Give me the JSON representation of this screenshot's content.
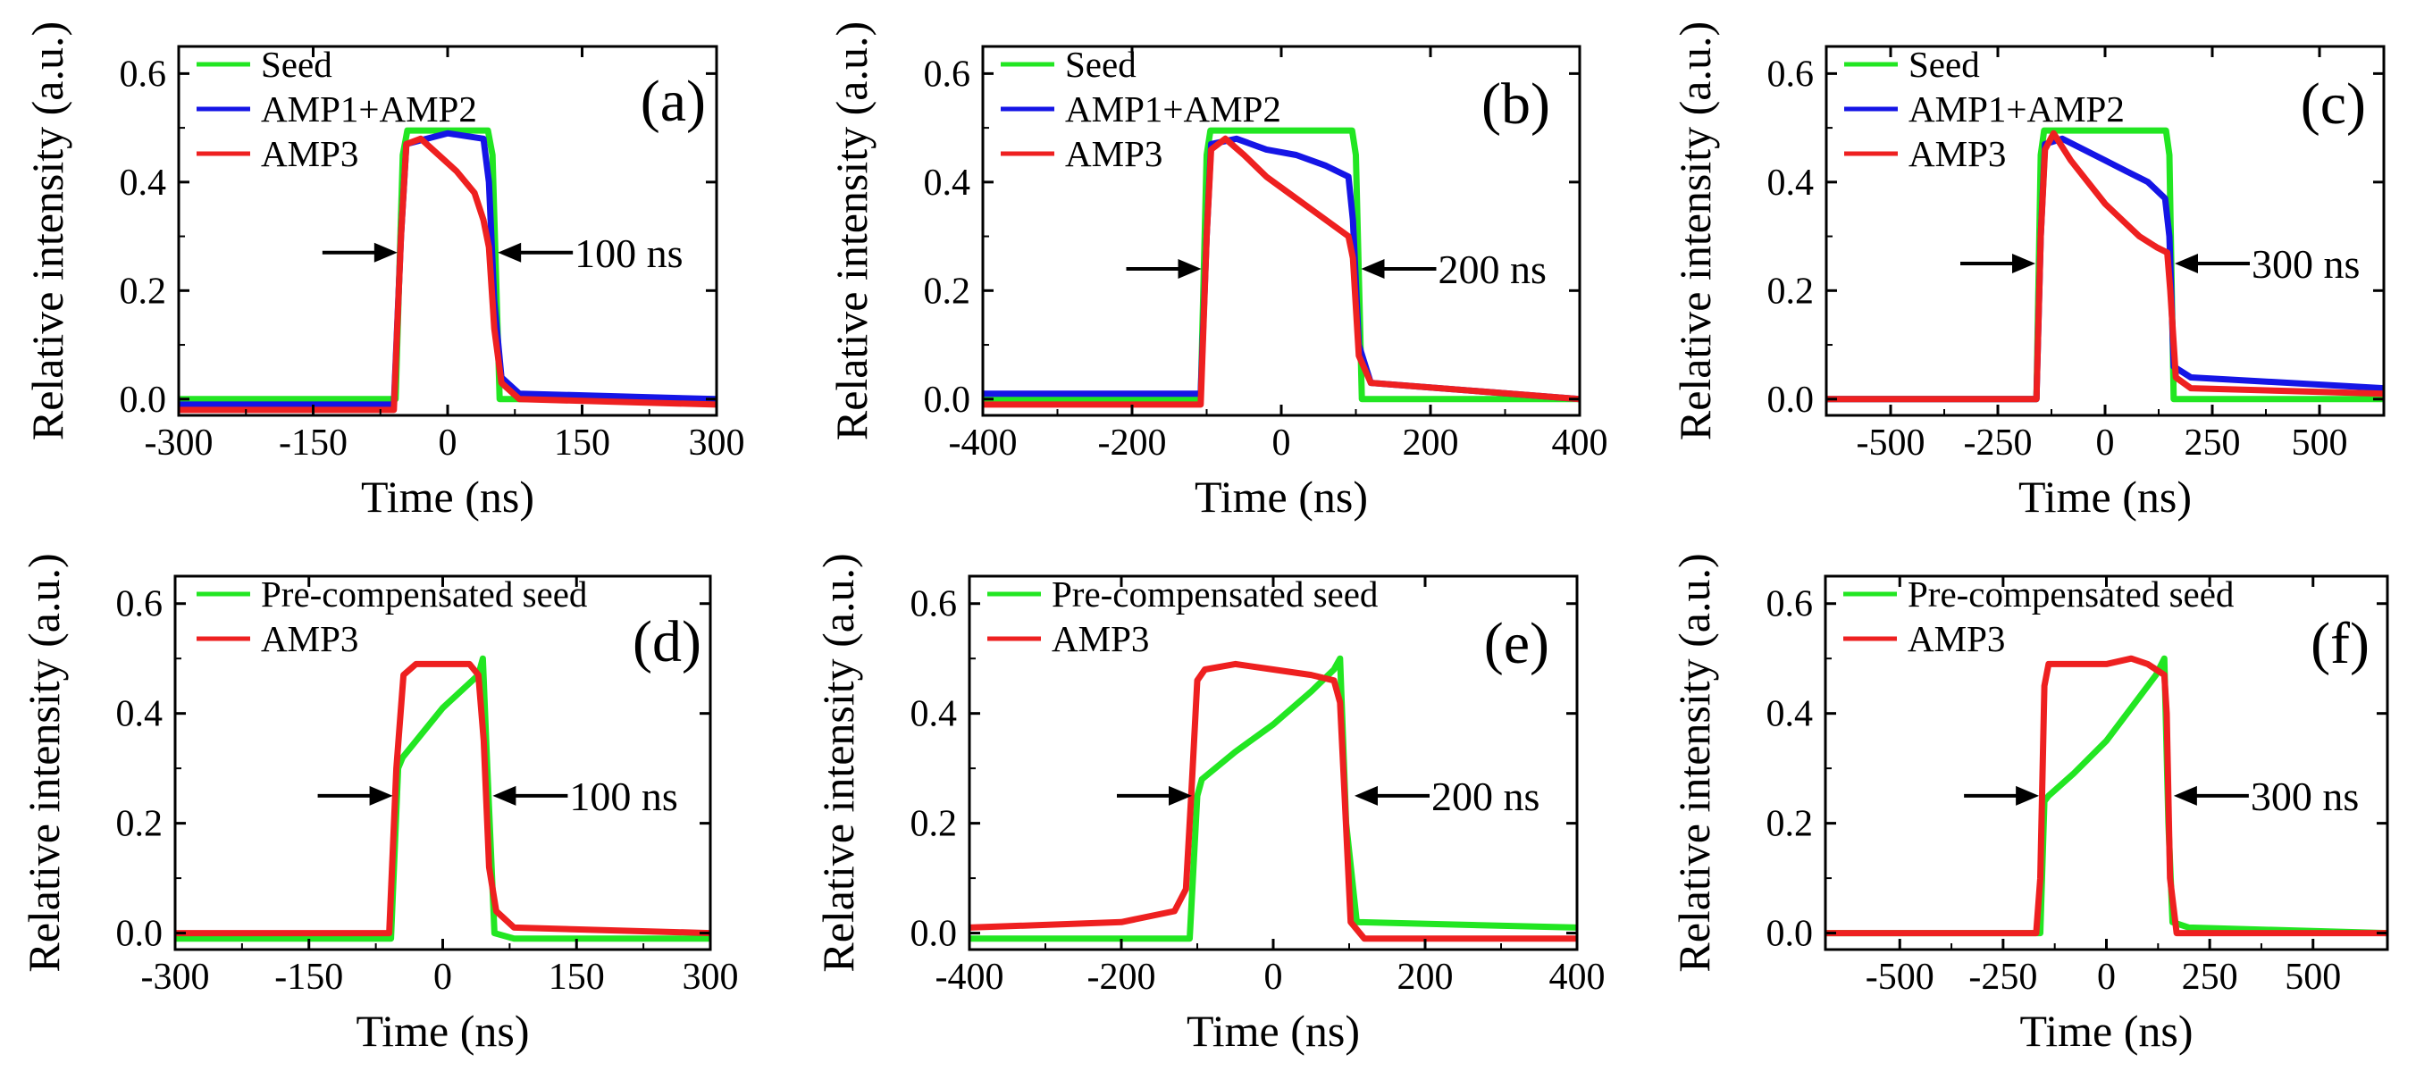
{
  "figure": {
    "title": ""
  },
  "chart_data": [
    {
      "type": "line",
      "panel": "(a)",
      "xlabel": "Time (ns)",
      "ylabel": "Relative intensity (a.u.)",
      "xlim": [
        -300,
        300
      ],
      "ylim": [
        -0.03,
        0.65
      ],
      "xticks": [
        -300,
        -150,
        0,
        150,
        300
      ],
      "xtick_labels": [
        "-300",
        "-150",
        "0",
        "150",
        "300"
      ],
      "yticks": [
        0.0,
        0.2,
        0.4,
        0.6
      ],
      "ytick_labels": [
        "0.0",
        "0.2",
        "0.4",
        "0.6"
      ],
      "legend_location": "top-left",
      "annotation": {
        "text": "100 ns",
        "arrow_y": 0.27,
        "left_x": -50,
        "right_x": 50
      },
      "series": [
        {
          "name": "Seed",
          "color": "#22e622",
          "x": [
            -300,
            -58,
            -50,
            -45,
            45,
            50,
            58,
            300
          ],
          "y": [
            0.0,
            0.0,
            0.45,
            0.495,
            0.495,
            0.45,
            0.0,
            0.0
          ]
        },
        {
          "name": "AMP1+AMP2",
          "color": "#1515e6",
          "x": [
            -300,
            -60,
            -52,
            -46,
            0,
            40,
            46,
            52,
            60,
            80,
            300
          ],
          "y": [
            -0.01,
            -0.01,
            0.3,
            0.47,
            0.49,
            0.48,
            0.4,
            0.18,
            0.04,
            0.01,
            0.0
          ]
        },
        {
          "name": "AMP3",
          "color": "#ee2020",
          "x": [
            -300,
            -60,
            -52,
            -46,
            -30,
            -10,
            10,
            30,
            40,
            46,
            52,
            60,
            80,
            300
          ],
          "y": [
            -0.02,
            -0.02,
            0.3,
            0.47,
            0.48,
            0.45,
            0.42,
            0.38,
            0.33,
            0.28,
            0.13,
            0.03,
            0.0,
            -0.01
          ]
        }
      ]
    },
    {
      "type": "line",
      "panel": "(b)",
      "xlabel": "Time (ns)",
      "ylabel": "Relative intensity (a.u.)",
      "xlim": [
        -400,
        400
      ],
      "ylim": [
        -0.03,
        0.65
      ],
      "xticks": [
        -400,
        -200,
        0,
        200,
        400
      ],
      "xtick_labels": [
        "-400",
        "-200",
        "0",
        "200",
        "400"
      ],
      "yticks": [
        0.0,
        0.2,
        0.4,
        0.6
      ],
      "ytick_labels": [
        "0.0",
        "0.2",
        "0.4",
        "0.6"
      ],
      "legend_location": "top-left",
      "annotation": {
        "text": "200 ns",
        "arrow_y": 0.24,
        "left_x": -100,
        "right_x": 100
      },
      "series": [
        {
          "name": "Seed",
          "color": "#22e622",
          "x": [
            -400,
            -108,
            -100,
            -95,
            95,
            100,
            108,
            400
          ],
          "y": [
            0.0,
            0.0,
            0.45,
            0.495,
            0.495,
            0.45,
            0.0,
            0.0
          ]
        },
        {
          "name": "AMP1+AMP2",
          "color": "#1515e6",
          "x": [
            -400,
            -108,
            -100,
            -94,
            -60,
            -20,
            20,
            60,
            90,
            96,
            104,
            120,
            400
          ],
          "y": [
            0.01,
            0.01,
            0.3,
            0.47,
            0.48,
            0.46,
            0.45,
            0.43,
            0.41,
            0.33,
            0.1,
            0.03,
            0.0
          ]
        },
        {
          "name": "AMP3",
          "color": "#ee2020",
          "x": [
            -400,
            -108,
            -100,
            -94,
            -75,
            -50,
            -20,
            10,
            40,
            70,
            90,
            96,
            104,
            120,
            400
          ],
          "y": [
            -0.01,
            -0.01,
            0.3,
            0.46,
            0.48,
            0.45,
            0.41,
            0.38,
            0.35,
            0.32,
            0.3,
            0.26,
            0.08,
            0.03,
            0.0
          ]
        }
      ]
    },
    {
      "type": "line",
      "panel": "(c)",
      "xlabel": "Time (ns)",
      "ylabel": "Relative intensity (a.u.)",
      "xlim": [
        -650,
        650
      ],
      "ylim": [
        -0.03,
        0.65
      ],
      "xticks": [
        -500,
        -250,
        0,
        250,
        500
      ],
      "xtick_labels": [
        "-500",
        "-250",
        "0",
        "250",
        "500"
      ],
      "yticks": [
        0.0,
        0.2,
        0.4,
        0.6
      ],
      "ytick_labels": [
        "0.0",
        "0.2",
        "0.4",
        "0.6"
      ],
      "legend_location": "top-left",
      "annotation": {
        "text": "300 ns",
        "arrow_y": 0.25,
        "left_x": -150,
        "right_x": 150
      },
      "series": [
        {
          "name": "Seed",
          "color": "#22e622",
          "x": [
            -650,
            -160,
            -150,
            -142,
            142,
            150,
            160,
            650
          ],
          "y": [
            0.0,
            0.0,
            0.45,
            0.495,
            0.495,
            0.45,
            0.0,
            0.0
          ]
        },
        {
          "name": "AMP1+AMP2",
          "color": "#1515e6",
          "x": [
            -650,
            -160,
            -150,
            -140,
            -100,
            -50,
            0,
            50,
            100,
            140,
            150,
            160,
            200,
            650
          ],
          "y": [
            0.0,
            0.0,
            0.3,
            0.47,
            0.48,
            0.46,
            0.44,
            0.42,
            0.4,
            0.37,
            0.3,
            0.06,
            0.04,
            0.02
          ]
        },
        {
          "name": "AMP3",
          "color": "#ee2020",
          "x": [
            -650,
            -160,
            -150,
            -140,
            -120,
            -80,
            -40,
            0,
            40,
            80,
            120,
            145,
            152,
            165,
            200,
            650
          ],
          "y": [
            0.0,
            0.0,
            0.3,
            0.46,
            0.49,
            0.44,
            0.4,
            0.36,
            0.33,
            0.3,
            0.28,
            0.27,
            0.2,
            0.04,
            0.02,
            0.01
          ]
        }
      ]
    },
    {
      "type": "line",
      "panel": "(d)",
      "xlabel": "Time (ns)",
      "ylabel": "Relative intensity (a.u.)",
      "xlim": [
        -300,
        300
      ],
      "ylim": [
        -0.03,
        0.65
      ],
      "xticks": [
        -300,
        -150,
        0,
        150,
        300
      ],
      "xtick_labels": [
        "-300",
        "-150",
        "0",
        "150",
        "300"
      ],
      "yticks": [
        0.0,
        0.2,
        0.4,
        0.6
      ],
      "ytick_labels": [
        "0.0",
        "0.2",
        "0.4",
        "0.6"
      ],
      "legend_location": "top-left",
      "annotation": {
        "text": "100 ns",
        "arrow_y": 0.25,
        "left_x": -50,
        "right_x": 50
      },
      "series": [
        {
          "name": "Pre-compensated seed",
          "color": "#22e622",
          "x": [
            -300,
            -58,
            -50,
            -45,
            0,
            40,
            45,
            50,
            58,
            80,
            300
          ],
          "y": [
            -0.01,
            -0.01,
            0.3,
            0.32,
            0.41,
            0.47,
            0.5,
            0.3,
            0.0,
            -0.01,
            -0.01
          ]
        },
        {
          "name": "AMP3",
          "color": "#ee2020",
          "x": [
            -300,
            -60,
            -52,
            -44,
            -30,
            0,
            30,
            40,
            46,
            52,
            60,
            80,
            300
          ],
          "y": [
            0.0,
            0.0,
            0.3,
            0.47,
            0.49,
            0.49,
            0.49,
            0.47,
            0.35,
            0.12,
            0.04,
            0.01,
            0.0
          ]
        }
      ]
    },
    {
      "type": "line",
      "panel": "(e)",
      "xlabel": "Time (ns)",
      "ylabel": "Relative intensity (a.u.)",
      "xlim": [
        -400,
        400
      ],
      "ylim": [
        -0.03,
        0.65
      ],
      "xticks": [
        -400,
        -200,
        0,
        200,
        400
      ],
      "xtick_labels": [
        "-400",
        "-200",
        "0",
        "200",
        "400"
      ],
      "yticks": [
        0.0,
        0.2,
        0.4,
        0.6
      ],
      "ytick_labels": [
        "0.0",
        "0.2",
        "0.4",
        "0.6"
      ],
      "legend_location": "top-left",
      "annotation": {
        "text": "200 ns",
        "arrow_y": 0.25,
        "left_x": -100,
        "right_x": 100
      },
      "series": [
        {
          "name": "Pre-compensated seed",
          "color": "#22e622",
          "x": [
            -400,
            -110,
            -100,
            -94,
            -50,
            0,
            50,
            80,
            88,
            96,
            110,
            400
          ],
          "y": [
            -0.01,
            -0.01,
            0.25,
            0.28,
            0.33,
            0.38,
            0.44,
            0.48,
            0.5,
            0.2,
            0.02,
            0.01
          ]
        },
        {
          "name": "AMP3",
          "color": "#ee2020",
          "x": [
            -400,
            -200,
            -130,
            -115,
            -108,
            -100,
            -90,
            -50,
            0,
            50,
            80,
            88,
            94,
            102,
            120,
            400
          ],
          "y": [
            0.01,
            0.02,
            0.04,
            0.08,
            0.25,
            0.46,
            0.48,
            0.49,
            0.48,
            0.47,
            0.46,
            0.42,
            0.25,
            0.02,
            -0.01,
            -0.01
          ]
        }
      ]
    },
    {
      "type": "line",
      "panel": "(f)",
      "xlabel": "Time (ns)",
      "ylabel": "Relative intensity (a.u.)",
      "xlim": [
        -680,
        680
      ],
      "ylim": [
        -0.03,
        0.65
      ],
      "xticks": [
        -500,
        -250,
        0,
        250,
        500
      ],
      "xtick_labels": [
        "-500",
        "-250",
        "0",
        "250",
        "500"
      ],
      "yticks": [
        0.0,
        0.2,
        0.4,
        0.6
      ],
      "ytick_labels": [
        "0.0",
        "0.2",
        "0.4",
        "0.6"
      ],
      "legend_location": "top-left",
      "annotation": {
        "text": "300 ns",
        "arrow_y": 0.25,
        "left_x": -150,
        "right_x": 150
      },
      "series": [
        {
          "name": "Pre-compensated seed",
          "color": "#22e622",
          "x": [
            -680,
            -160,
            -150,
            -140,
            -80,
            0,
            60,
            120,
            140,
            150,
            160,
            200,
            680
          ],
          "y": [
            0.0,
            0.0,
            0.24,
            0.25,
            0.29,
            0.35,
            0.41,
            0.47,
            0.5,
            0.2,
            0.02,
            0.01,
            0.0
          ]
        },
        {
          "name": "AMP3",
          "color": "#ee2020",
          "x": [
            -680,
            -170,
            -160,
            -150,
            -140,
            -80,
            0,
            60,
            100,
            140,
            146,
            154,
            170,
            680
          ],
          "y": [
            0.0,
            0.0,
            0.1,
            0.45,
            0.49,
            0.49,
            0.49,
            0.5,
            0.49,
            0.47,
            0.4,
            0.1,
            0.0,
            0.0
          ]
        }
      ]
    }
  ]
}
